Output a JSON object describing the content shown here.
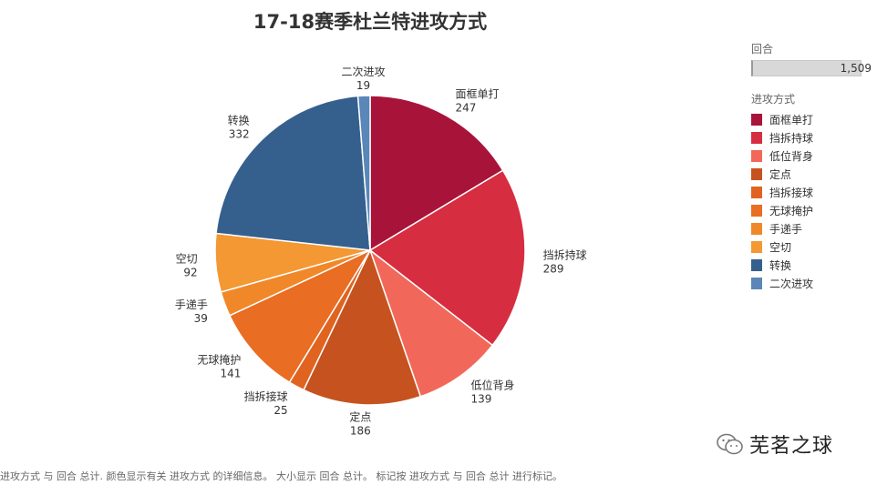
{
  "chart_data": {
    "type": "pie",
    "title": "17-18赛季杜兰特进攻方式",
    "total_label": "回合",
    "total_value": "1,509",
    "legend_title": "进攻方式",
    "slices": [
      {
        "label": "面框单打",
        "value": 247,
        "color": "#a8133a"
      },
      {
        "label": "挡拆持球",
        "value": 289,
        "color": "#d72d40"
      },
      {
        "label": "低位背身",
        "value": 139,
        "color": "#f1685a"
      },
      {
        "label": "定点",
        "value": 186,
        "color": "#c6531f"
      },
      {
        "label": "挡拆接球",
        "value": 25,
        "color": "#e06320"
      },
      {
        "label": "无球掩护",
        "value": 141,
        "color": "#e96d22"
      },
      {
        "label": "手递手",
        "value": 39,
        "color": "#f0882a"
      },
      {
        "label": "空切",
        "value": 92,
        "color": "#f39833"
      },
      {
        "label": "转换",
        "value": 332,
        "color": "#35608e"
      },
      {
        "label": "二次进攻",
        "value": 19,
        "color": "#5a86b8"
      }
    ]
  },
  "footnote": "进攻方式 与 回合 总计. 颜色显示有关 进攻方式 的详细信息。 大小显示 回合 总计。 标记按 进攻方式 与 回合 总计 进行标记。",
  "watermark": "芜茗之球"
}
